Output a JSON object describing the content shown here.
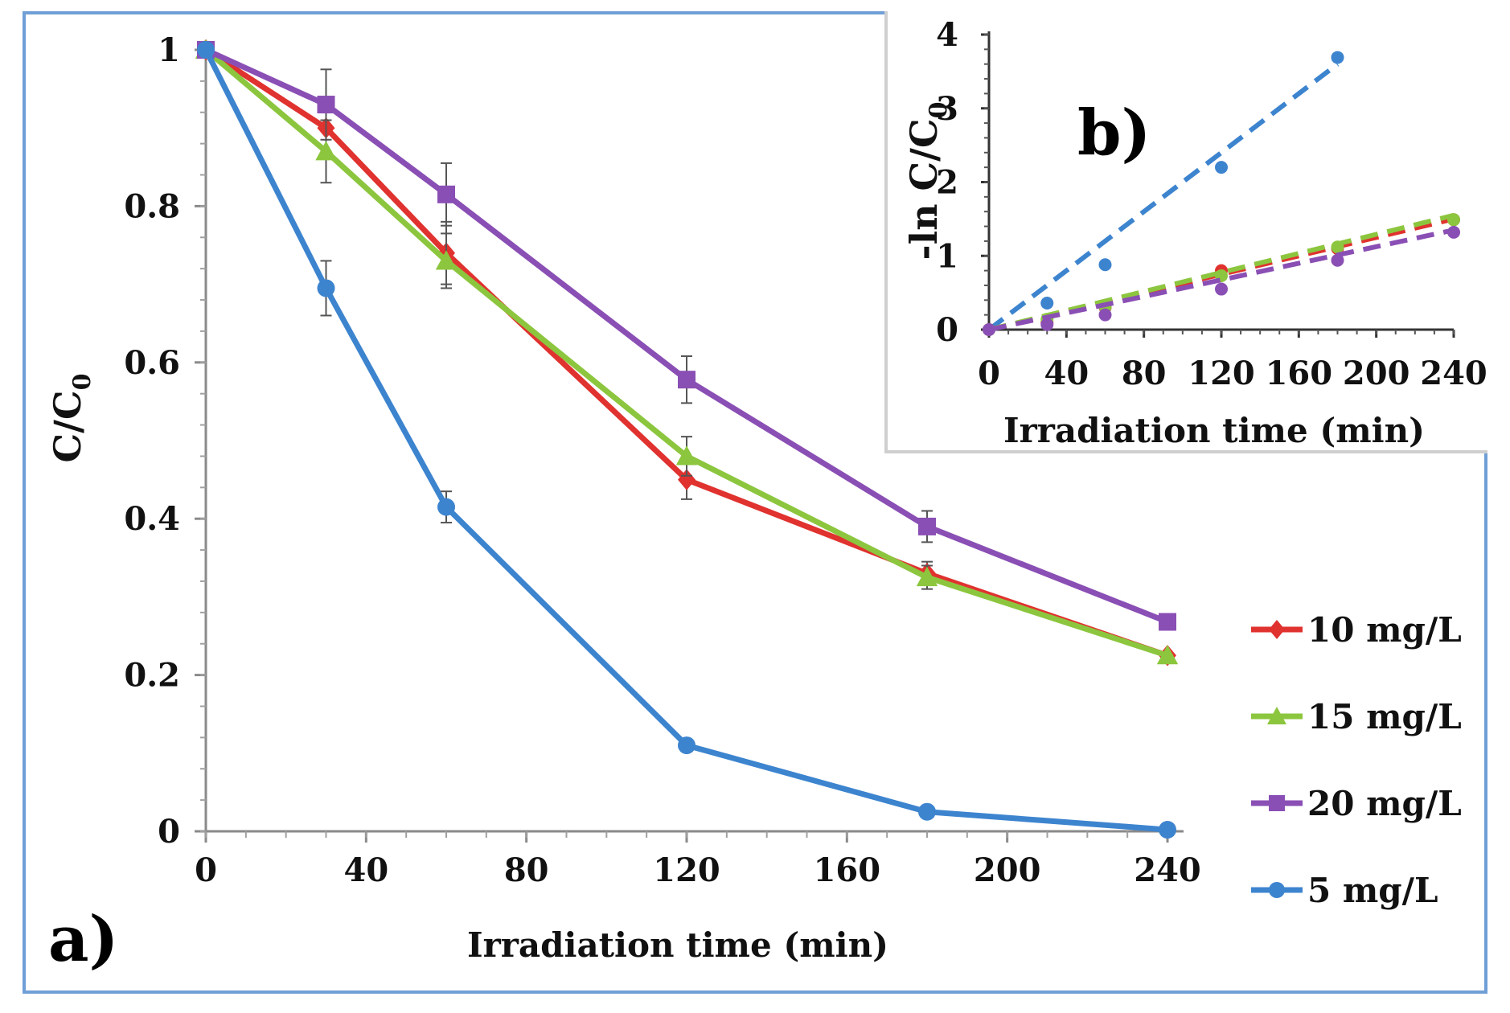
{
  "chart_data": [
    {
      "type": "line",
      "panel_label": "a)",
      "xlabel": "Irradiation time (min)",
      "ylabel": "C/C",
      "ylabel_sub": "0",
      "xlim": [
        0,
        240
      ],
      "ylim": [
        0,
        1
      ],
      "xticks": [
        "0",
        "40",
        "80",
        "120",
        "160",
        "200",
        "240"
      ],
      "yticks": [
        "0",
        "0.2",
        "0.4",
        "0.6",
        "0.8",
        "1"
      ],
      "x": [
        0,
        30,
        60,
        120,
        180,
        240
      ],
      "series": [
        {
          "name": "10 mg/L",
          "color": "#e0322f",
          "marker": "diamond",
          "values": [
            1,
            0.9,
            0.74,
            0.45,
            0.33,
            0.225
          ],
          "errors": [
            0,
            0.03,
            0.04,
            0.025,
            0.015,
            0
          ]
        },
        {
          "name": "15 mg/L",
          "color": "#8cc63e",
          "marker": "triangle",
          "values": [
            1,
            0.87,
            0.73,
            0.48,
            0.325,
            0.225
          ],
          "errors": [
            0,
            0.04,
            0.035,
            0.025,
            0.015,
            0
          ]
        },
        {
          "name": "20 mg/L",
          "color": "#8a4fb4",
          "marker": "square",
          "values": [
            1,
            0.93,
            0.815,
            0.578,
            0.39,
            0.268
          ],
          "errors": [
            0,
            0.045,
            0.04,
            0.03,
            0.02,
            0
          ]
        },
        {
          "name": "5 mg/L",
          "color": "#3d84cf",
          "marker": "circle",
          "values": [
            1,
            0.695,
            0.415,
            0.11,
            0.025,
            0.002
          ],
          "errors": [
            0,
            0.035,
            0.02,
            0,
            0,
            0
          ]
        }
      ],
      "legend": "right"
    },
    {
      "type": "scatter",
      "panel_label": "b)",
      "xlabel": "Irradiation time (min)",
      "ylabel": "-ln C/C",
      "ylabel_sub": "0",
      "xlim": [
        0,
        240
      ],
      "ylim": [
        0,
        4
      ],
      "xticks": [
        "0",
        "40",
        "80",
        "120",
        "160",
        "200",
        "240"
      ],
      "yticks": [
        "0",
        "1",
        "2",
        "3",
        "4"
      ],
      "series": [
        {
          "name": "5 mg/L",
          "color": "#3d84cf",
          "x": [
            0,
            30,
            60,
            120,
            180
          ],
          "values": [
            0,
            0.36,
            0.88,
            2.2,
            3.69
          ],
          "fit": [
            [
              0,
              0
            ],
            [
              180,
              3.6
            ]
          ]
        },
        {
          "name": "10 mg/L",
          "color": "#e0322f",
          "x": [
            0,
            30,
            60,
            120,
            180,
            240
          ],
          "values": [
            0,
            0.1,
            0.3,
            0.8,
            1.1,
            1.49
          ],
          "fit": [
            [
              0,
              0
            ],
            [
              240,
              1.5
            ]
          ]
        },
        {
          "name": "15 mg/L",
          "color": "#8cc63e",
          "x": [
            0,
            30,
            60,
            120,
            180,
            240
          ],
          "values": [
            0,
            0.14,
            0.31,
            0.73,
            1.12,
            1.49
          ],
          "fit": [
            [
              0,
              0
            ],
            [
              240,
              1.55
            ]
          ]
        },
        {
          "name": "20 mg/L",
          "color": "#8a4fb4",
          "x": [
            0,
            30,
            60,
            120,
            180,
            240
          ],
          "values": [
            0,
            0.07,
            0.2,
            0.55,
            0.94,
            1.32
          ],
          "fit": [
            [
              0,
              0
            ],
            [
              240,
              1.35
            ]
          ]
        }
      ]
    }
  ]
}
